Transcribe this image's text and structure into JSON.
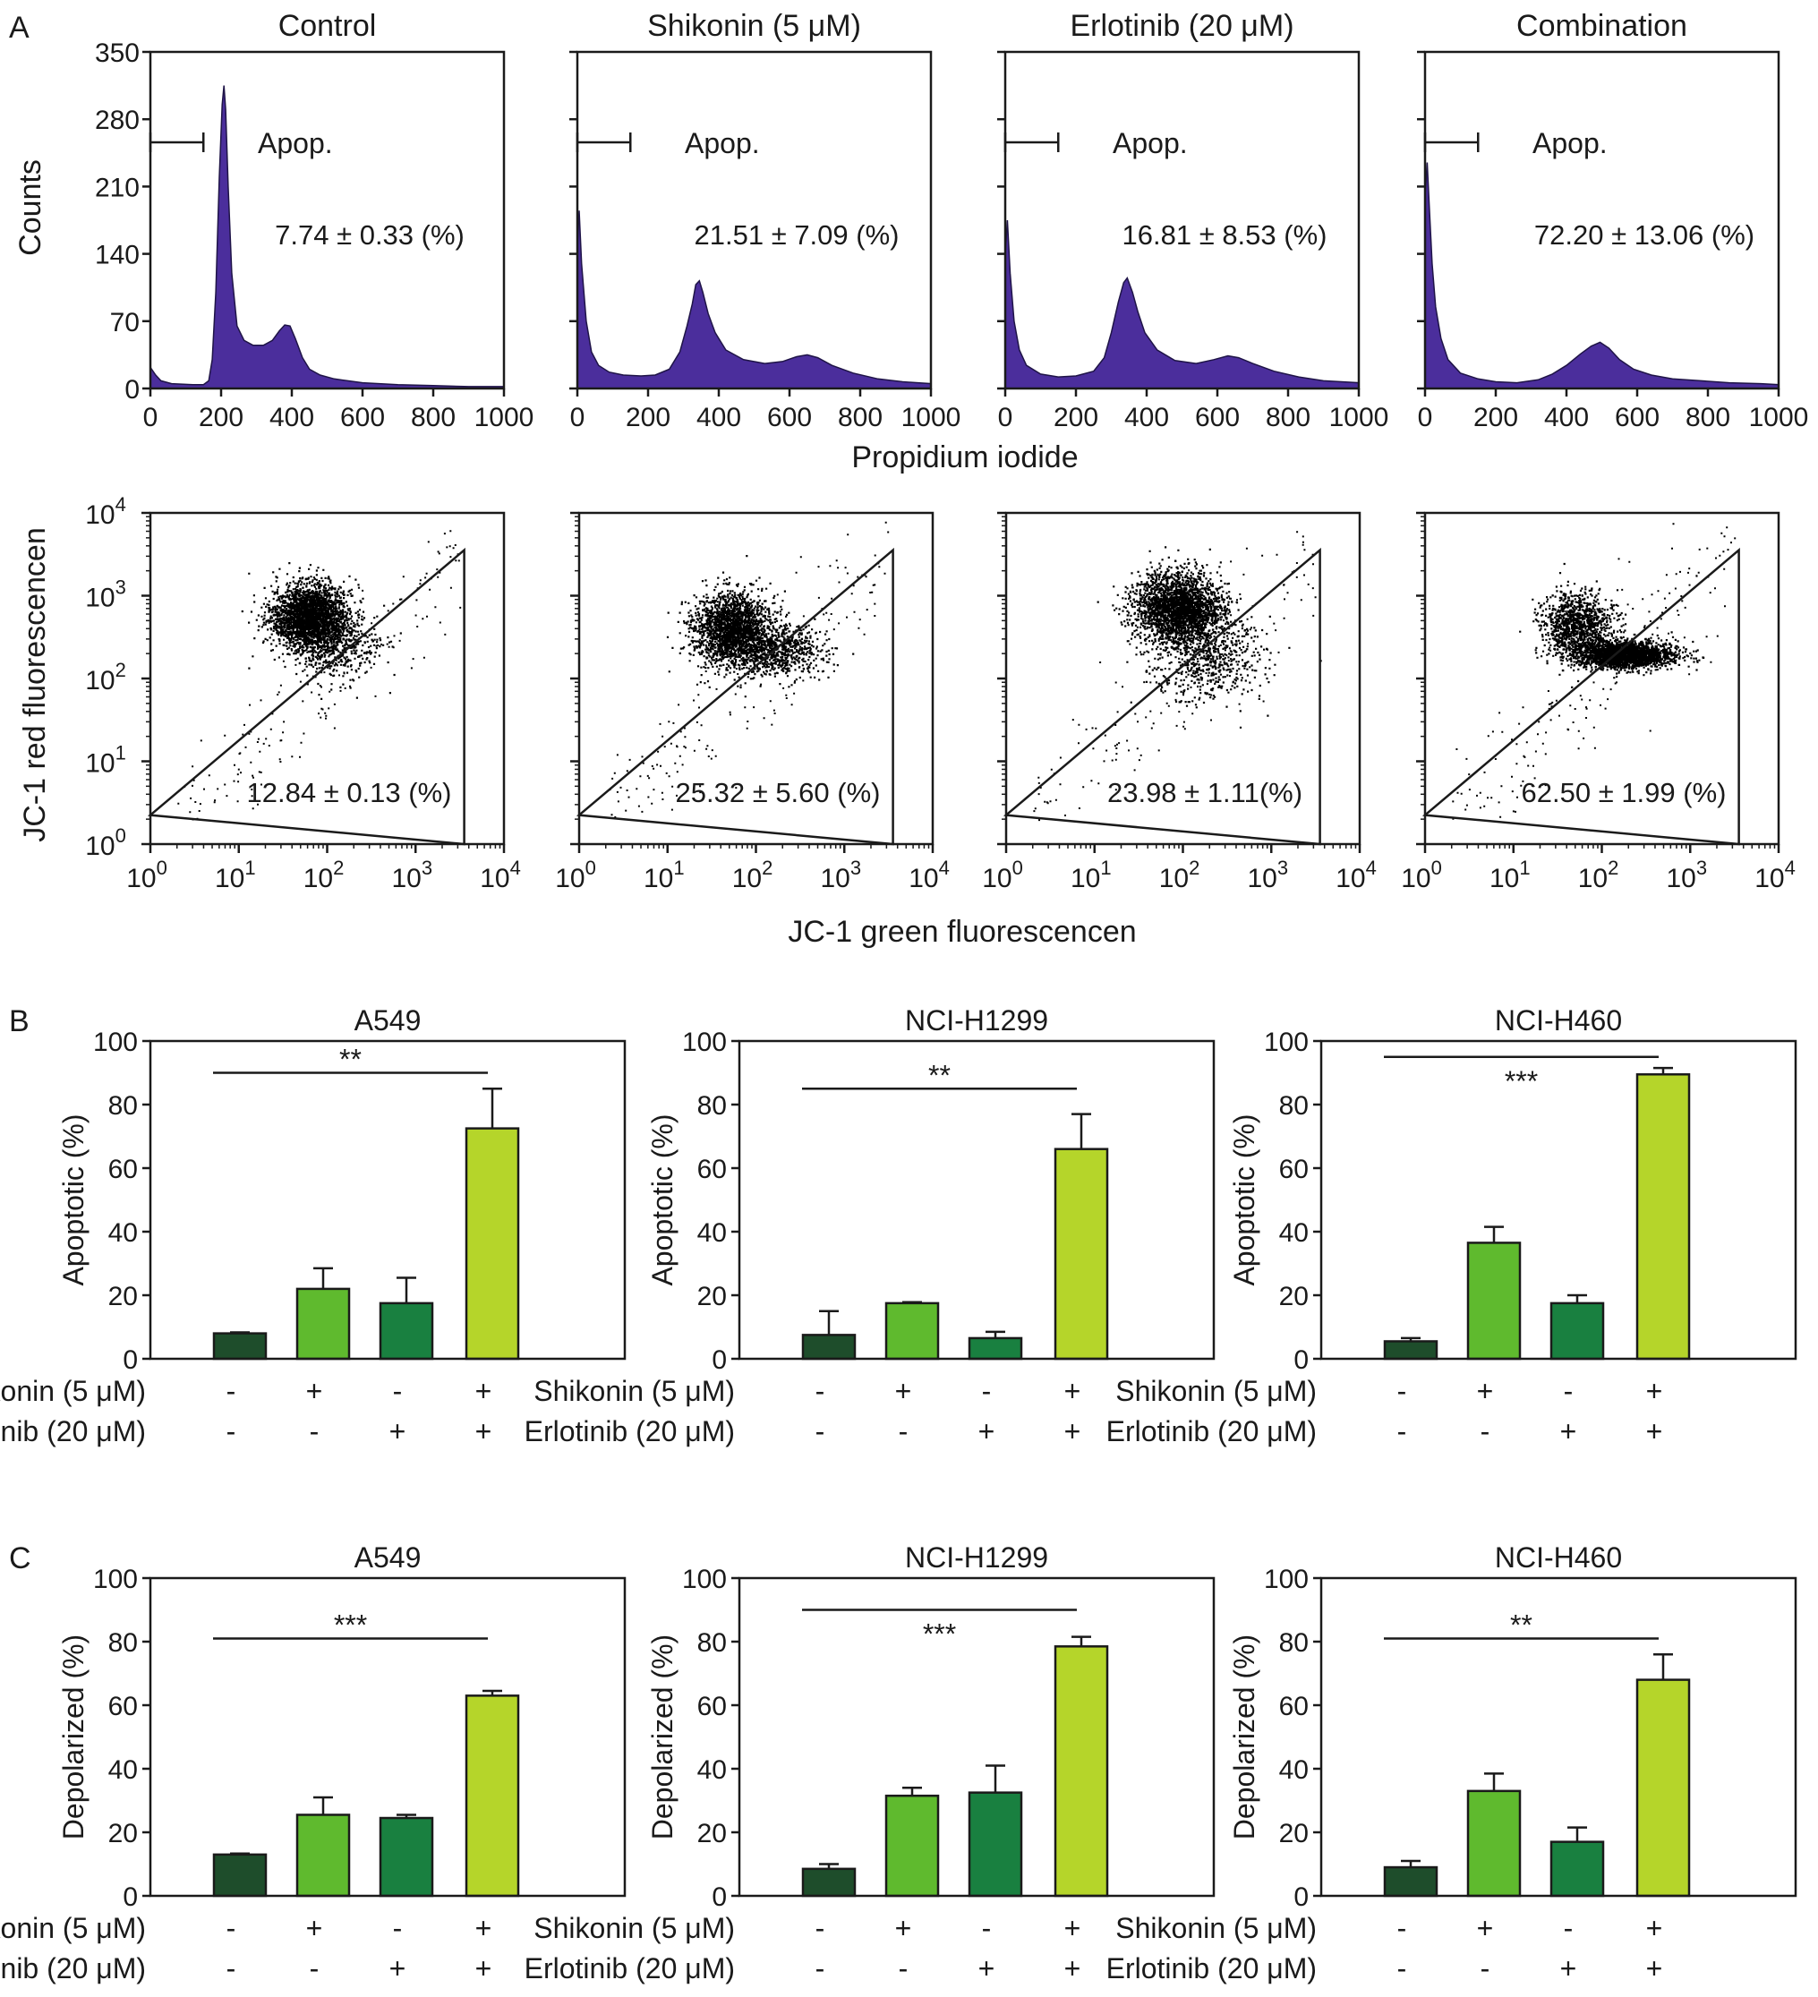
{
  "panel_labels": {
    "a": "A",
    "b": "B",
    "c": "C"
  },
  "colors": {
    "histogram_fill": "#4b2e9c",
    "histogram_edge": "#1f1447",
    "bar_colors": [
      "#1e4d2b",
      "#5fba2e",
      "#198040",
      "#b5d52a"
    ],
    "axis": "#1a1a1a"
  },
  "treatment_rows": {
    "shikonin_label": "Shikonin (5 μM)",
    "erlotinib_label": "Erlotinib (20 μM)",
    "shikonin_signs": [
      "-",
      "+",
      "-",
      "+"
    ],
    "erlotinib_signs": [
      "-",
      "-",
      "+",
      "+"
    ]
  },
  "chart_data": [
    {
      "type": "area",
      "id": "pi_histograms",
      "panel": "A",
      "xlabel": "Propidium iodide",
      "ylabel": "Counts",
      "xlim": [
        0,
        1000
      ],
      "ylim": [
        0,
        350
      ],
      "xticks": [
        0,
        200,
        400,
        600,
        800,
        1000
      ],
      "yticks": [
        0,
        70,
        140,
        210,
        280,
        350
      ],
      "gate_label": "Apop.",
      "gate_range": [
        0,
        150
      ],
      "panels": [
        {
          "title": "Control",
          "stat": "7.74 ±  0.33 (%)",
          "points": [
            [
              0,
              22
            ],
            [
              15,
              14
            ],
            [
              30,
              8
            ],
            [
              60,
              5
            ],
            [
              120,
              4
            ],
            [
              150,
              4
            ],
            [
              165,
              8
            ],
            [
              175,
              30
            ],
            [
              185,
              100
            ],
            [
              195,
              220
            ],
            [
              203,
              295
            ],
            [
              208,
              315
            ],
            [
              213,
              290
            ],
            [
              220,
              210
            ],
            [
              230,
              120
            ],
            [
              245,
              65
            ],
            [
              265,
              50
            ],
            [
              290,
              45
            ],
            [
              320,
              45
            ],
            [
              345,
              50
            ],
            [
              365,
              60
            ],
            [
              380,
              66
            ],
            [
              395,
              65
            ],
            [
              410,
              52
            ],
            [
              430,
              32
            ],
            [
              450,
              20
            ],
            [
              480,
              14
            ],
            [
              520,
              10
            ],
            [
              600,
              6
            ],
            [
              700,
              4
            ],
            [
              800,
              3
            ],
            [
              900,
              2
            ],
            [
              1000,
              2
            ]
          ]
        },
        {
          "title": "Shikonin (5 μM)",
          "stat": "21.51 ±  7.09 (%)",
          "points": [
            [
              0,
              150
            ],
            [
              5,
              185
            ],
            [
              12,
              130
            ],
            [
              25,
              70
            ],
            [
              40,
              38
            ],
            [
              60,
              24
            ],
            [
              90,
              17
            ],
            [
              130,
              14
            ],
            [
              180,
              13
            ],
            [
              220,
              14
            ],
            [
              260,
              20
            ],
            [
              290,
              38
            ],
            [
              310,
              65
            ],
            [
              325,
              88
            ],
            [
              335,
              108
            ],
            [
              345,
              112
            ],
            [
              355,
              100
            ],
            [
              370,
              78
            ],
            [
              390,
              58
            ],
            [
              420,
              40
            ],
            [
              470,
              30
            ],
            [
              530,
              26
            ],
            [
              580,
              28
            ],
            [
              620,
              33
            ],
            [
              650,
              35
            ],
            [
              680,
              32
            ],
            [
              720,
              24
            ],
            [
              780,
              16
            ],
            [
              850,
              10
            ],
            [
              920,
              7
            ],
            [
              1000,
              5
            ]
          ]
        },
        {
          "title": "Erlotinib (20 μM)",
          "stat": "16.81 ±  8.53 (%)",
          "points": [
            [
              0,
              140
            ],
            [
              6,
              175
            ],
            [
              14,
              120
            ],
            [
              25,
              70
            ],
            [
              40,
              40
            ],
            [
              60,
              24
            ],
            [
              100,
              15
            ],
            [
              150,
              12
            ],
            [
              200,
              13
            ],
            [
              250,
              18
            ],
            [
              280,
              32
            ],
            [
              300,
              58
            ],
            [
              320,
              90
            ],
            [
              335,
              110
            ],
            [
              345,
              115
            ],
            [
              360,
              100
            ],
            [
              375,
              80
            ],
            [
              395,
              58
            ],
            [
              430,
              40
            ],
            [
              480,
              29
            ],
            [
              540,
              26
            ],
            [
              590,
              30
            ],
            [
              630,
              34
            ],
            [
              660,
              32
            ],
            [
              700,
              26
            ],
            [
              760,
              18
            ],
            [
              830,
              12
            ],
            [
              900,
              8
            ],
            [
              1000,
              6
            ]
          ]
        },
        {
          "title": "Combination",
          "stat": "72.20 ±  13.06 (%)",
          "points": [
            [
              0,
              200
            ],
            [
              6,
              235
            ],
            [
              12,
              190
            ],
            [
              20,
              130
            ],
            [
              30,
              85
            ],
            [
              45,
              52
            ],
            [
              65,
              30
            ],
            [
              100,
              16
            ],
            [
              150,
              10
            ],
            [
              200,
              7
            ],
            [
              260,
              6
            ],
            [
              320,
              9
            ],
            [
              360,
              15
            ],
            [
              400,
              24
            ],
            [
              440,
              36
            ],
            [
              470,
              44
            ],
            [
              495,
              48
            ],
            [
              520,
              42
            ],
            [
              550,
              30
            ],
            [
              590,
              20
            ],
            [
              640,
              14
            ],
            [
              700,
              10
            ],
            [
              780,
              8
            ],
            [
              860,
              6
            ],
            [
              950,
              5
            ],
            [
              1000,
              4
            ]
          ]
        }
      ]
    },
    {
      "type": "scatter",
      "id": "jc1_plots",
      "panel": "A",
      "xlabel": "JC-1 green fluorescencen",
      "ylabel": "JC-1 red fluorescencen",
      "scale": "log10",
      "xlim": [
        1,
        10000
      ],
      "ylim": [
        1,
        10000
      ],
      "tick_base": "10",
      "tick_exponents": [
        "0",
        "1",
        "2",
        "3",
        "4"
      ],
      "gate_vertices_log10": [
        [
          0,
          0.35
        ],
        [
          3.55,
          3.55
        ],
        [
          3.55,
          0
        ]
      ],
      "panels": [
        {
          "title": "Control",
          "stat": "12.84 ±  0.13 (%)",
          "clusters": [
            {
              "x": 1.8,
              "y": 2.75,
              "sx": 0.22,
              "sy": 0.2,
              "n": 2600
            },
            {
              "x": 2.1,
              "y": 2.4,
              "sx": 0.25,
              "sy": 0.18,
              "n": 400
            }
          ]
        },
        {
          "title": "Shikonin (5 μM)",
          "stat": "25.32 ±  5.60 (%)",
          "clusters": [
            {
              "x": 1.72,
              "y": 2.6,
              "sx": 0.22,
              "sy": 0.22,
              "n": 2100
            },
            {
              "x": 2.25,
              "y": 2.35,
              "sx": 0.25,
              "sy": 0.15,
              "n": 700
            }
          ]
        },
        {
          "title": "Erlotinib (20 μM)",
          "stat": "23.98 ±  1.11(%)",
          "clusters": [
            {
              "x": 1.95,
              "y": 2.85,
              "sx": 0.25,
              "sy": 0.22,
              "n": 2600
            },
            {
              "x": 2.3,
              "y": 2.25,
              "sx": 0.3,
              "sy": 0.25,
              "n": 600
            }
          ]
        },
        {
          "title": "Combination",
          "stat": "62.50 ±  1.99 (%)",
          "clusters": [
            {
              "x": 1.7,
              "y": 2.65,
              "sx": 0.2,
              "sy": 0.2,
              "n": 1100
            },
            {
              "x": 2.25,
              "y": 2.3,
              "sx": 0.28,
              "sy": 0.08,
              "n": 2300
            }
          ]
        }
      ]
    },
    {
      "type": "bar",
      "id": "apoptotic_bars",
      "panel": "B",
      "ylabel": "Apoptotic (%)",
      "ylim": [
        0,
        100
      ],
      "yticks": [
        0,
        20,
        40,
        60,
        80,
        100
      ],
      "categories": [
        "Control",
        "Shikonin",
        "Erlotinib",
        "Combination"
      ],
      "charts": [
        {
          "title": "A549",
          "values": [
            8,
            22,
            17.5,
            72.5
          ],
          "errors": [
            0.3,
            6.5,
            8,
            12.5
          ],
          "sig": "**",
          "sig_from": 0,
          "sig_to": 3,
          "sig_value": 90,
          "sig_text_below": false
        },
        {
          "title": "NCI-H1299",
          "values": [
            7.5,
            17.5,
            6.5,
            66
          ],
          "errors": [
            7.5,
            0.3,
            2,
            11
          ],
          "sig": "**",
          "sig_from": 0,
          "sig_to": 3,
          "sig_value": 85,
          "sig_text_below": false
        },
        {
          "title": "NCI-H460",
          "values": [
            5.5,
            36.5,
            17.5,
            89.5
          ],
          "errors": [
            1,
            5,
            2.5,
            2
          ],
          "sig": "***",
          "sig_from": 0,
          "sig_to": 3,
          "sig_value": 95,
          "sig_text_below": true
        }
      ]
    },
    {
      "type": "bar",
      "id": "depolarized_bars",
      "panel": "C",
      "ylabel": "Depolarized (%)",
      "ylim": [
        0,
        100
      ],
      "yticks": [
        0,
        20,
        40,
        60,
        80,
        100
      ],
      "categories": [
        "Control",
        "Shikonin",
        "Erlotinib",
        "Combination"
      ],
      "charts": [
        {
          "title": "A549",
          "values": [
            13,
            25.5,
            24.5,
            63
          ],
          "errors": [
            0.3,
            5.5,
            1,
            1.5
          ],
          "sig": "***",
          "sig_from": 0,
          "sig_to": 3,
          "sig_value": 81,
          "sig_text_below": false
        },
        {
          "title": "NCI-H1299",
          "values": [
            8.5,
            31.5,
            32.5,
            78.5
          ],
          "errors": [
            1.5,
            2.5,
            8.5,
            3
          ],
          "sig": "***",
          "sig_from": 0,
          "sig_to": 3,
          "sig_value": 90,
          "sig_text_below": true
        },
        {
          "title": "NCI-H460",
          "values": [
            9,
            33,
            17,
            68
          ],
          "errors": [
            2,
            5.5,
            4.5,
            8
          ],
          "sig": "**",
          "sig_from": 0,
          "sig_to": 3,
          "sig_value": 81,
          "sig_text_below": false
        }
      ]
    }
  ]
}
